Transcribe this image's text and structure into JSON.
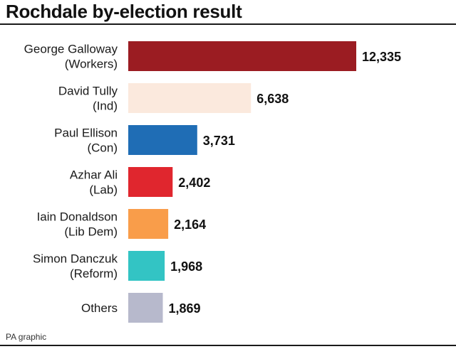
{
  "title": "Rochdale by-election result",
  "source": "PA graphic",
  "chart_data": {
    "type": "bar",
    "orientation": "horizontal",
    "title": "Rochdale by-election result",
    "categories": [
      [
        "George Galloway",
        "(Workers)"
      ],
      [
        "David Tully",
        "(Ind)"
      ],
      [
        "Paul Ellison",
        "(Con)"
      ],
      [
        "Azhar Ali",
        "(Lab)"
      ],
      [
        "Iain Donaldson",
        "(Lib Dem)"
      ],
      [
        "Simon Danczuk",
        "(Reform)"
      ],
      [
        "Others"
      ]
    ],
    "values": [
      12335,
      6638,
      3731,
      2402,
      2164,
      1968,
      1869
    ],
    "value_labels": [
      "12,335",
      "6,638",
      "3,731",
      "2,402",
      "2,164",
      "1,968",
      "1,869"
    ],
    "colors": [
      "#9b1c22",
      "#fbe9dd",
      "#1f6db5",
      "#e0262e",
      "#f99d4a",
      "#33c4c4",
      "#b7b9cc"
    ],
    "xlim": [
      0,
      12335
    ],
    "grid": false,
    "legend": "none"
  }
}
